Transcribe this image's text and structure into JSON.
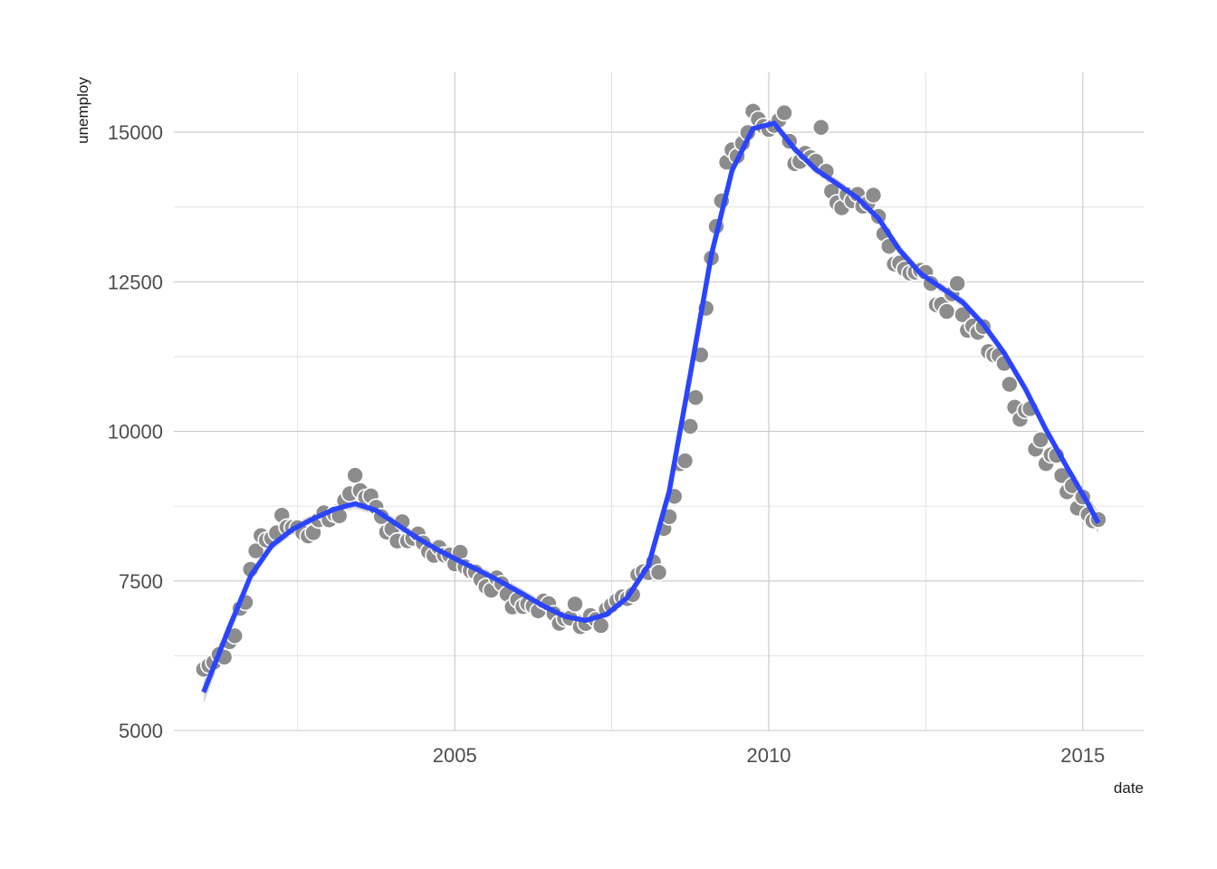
{
  "chart_data": {
    "type": "scatter",
    "xlabel": "date",
    "ylabel": "unemploy",
    "x_scale": "date",
    "xlim": [
      "2000-07-12",
      "2015-12-21"
    ],
    "ylim": [
      5000,
      16000
    ],
    "x_ticks": [
      {
        "value": "2005-01-01",
        "label": "2005"
      },
      {
        "value": "2010-01-01",
        "label": "2010"
      },
      {
        "value": "2015-01-01",
        "label": "2015"
      }
    ],
    "x_minor_ticks": [
      "2002-07-02",
      "2007-07-02",
      "2012-07-02"
    ],
    "y_ticks": [
      {
        "value": 5000,
        "label": "5000"
      },
      {
        "value": 7500,
        "label": "7500"
      },
      {
        "value": 10000,
        "label": "10000"
      },
      {
        "value": 12500,
        "label": "12500"
      },
      {
        "value": 15000,
        "label": "15000"
      }
    ],
    "y_minor_ticks": [
      6250,
      8750,
      11250,
      13750
    ],
    "grid": true,
    "series": [
      {
        "kind": "points",
        "color": "#8c8c8c",
        "x": [
          "2001-01-01",
          "2001-02-01",
          "2001-03-01",
          "2001-04-01",
          "2001-05-01",
          "2001-06-01",
          "2001-07-01",
          "2001-08-01",
          "2001-09-01",
          "2001-10-01",
          "2001-11-01",
          "2001-12-01",
          "2002-01-01",
          "2002-02-01",
          "2002-03-01",
          "2002-04-01",
          "2002-05-01",
          "2002-06-01",
          "2002-07-01",
          "2002-08-01",
          "2002-09-01",
          "2002-10-01",
          "2002-11-01",
          "2002-12-01",
          "2003-01-01",
          "2003-02-01",
          "2003-03-01",
          "2003-04-01",
          "2003-05-01",
          "2003-06-01",
          "2003-07-01",
          "2003-08-01",
          "2003-09-01",
          "2003-10-01",
          "2003-11-01",
          "2003-12-01",
          "2004-01-01",
          "2004-02-01",
          "2004-03-01",
          "2004-04-01",
          "2004-05-01",
          "2004-06-01",
          "2004-07-01",
          "2004-08-01",
          "2004-09-01",
          "2004-10-01",
          "2004-11-01",
          "2004-12-01",
          "2005-01-01",
          "2005-02-01",
          "2005-03-01",
          "2005-04-01",
          "2005-05-01",
          "2005-06-01",
          "2005-07-01",
          "2005-08-01",
          "2005-09-01",
          "2005-10-01",
          "2005-11-01",
          "2005-12-01",
          "2006-01-01",
          "2006-02-01",
          "2006-03-01",
          "2006-04-01",
          "2006-05-01",
          "2006-06-01",
          "2006-07-01",
          "2006-08-01",
          "2006-09-01",
          "2006-10-01",
          "2006-11-01",
          "2006-12-01",
          "2007-01-01",
          "2007-02-01",
          "2007-03-01",
          "2007-04-01",
          "2007-05-01",
          "2007-06-01",
          "2007-07-01",
          "2007-08-01",
          "2007-09-01",
          "2007-10-01",
          "2007-11-01",
          "2007-12-01",
          "2008-01-01",
          "2008-02-01",
          "2008-03-01",
          "2008-04-01",
          "2008-05-01",
          "2008-06-01",
          "2008-07-01",
          "2008-08-01",
          "2008-09-01",
          "2008-10-01",
          "2008-11-01",
          "2008-12-01",
          "2009-01-01",
          "2009-02-01",
          "2009-03-01",
          "2009-04-01",
          "2009-05-01",
          "2009-06-01",
          "2009-07-01",
          "2009-08-01",
          "2009-09-01",
          "2009-10-01",
          "2009-11-01",
          "2009-12-01",
          "2010-01-01",
          "2010-02-01",
          "2010-03-01",
          "2010-04-01",
          "2010-05-01",
          "2010-06-01",
          "2010-07-01",
          "2010-08-01",
          "2010-09-01",
          "2010-10-01",
          "2010-11-01",
          "2010-12-01",
          "2011-01-01",
          "2011-02-01",
          "2011-03-01",
          "2011-04-01",
          "2011-05-01",
          "2011-06-01",
          "2011-07-01",
          "2011-08-01",
          "2011-09-01",
          "2011-10-01",
          "2011-11-01",
          "2011-12-01",
          "2012-01-01",
          "2012-02-01",
          "2012-03-01",
          "2012-04-01",
          "2012-05-01",
          "2012-06-01",
          "2012-07-01",
          "2012-08-01",
          "2012-09-01",
          "2012-10-01",
          "2012-11-01",
          "2012-12-01",
          "2013-01-01",
          "2013-02-01",
          "2013-03-01",
          "2013-04-01",
          "2013-05-01",
          "2013-06-01",
          "2013-07-01",
          "2013-08-01",
          "2013-09-01",
          "2013-10-01",
          "2013-11-01",
          "2013-12-01",
          "2014-01-01",
          "2014-02-01",
          "2014-03-01",
          "2014-04-01",
          "2014-05-01",
          "2014-06-01",
          "2014-07-01",
          "2014-08-01",
          "2014-09-01",
          "2014-10-01",
          "2014-11-01",
          "2014-12-01",
          "2015-01-01",
          "2015-02-01",
          "2015-03-01",
          "2015-04-01"
        ],
        "y": [
          6023,
          6089,
          6141,
          6271,
          6226,
          6484,
          6583,
          7042,
          7142,
          7694,
          8003,
          8258,
          8182,
          8215,
          8304,
          8599,
          8399,
          8393,
          8390,
          8304,
          8251,
          8307,
          8520,
          8640,
          8520,
          8618,
          8588,
          8842,
          8957,
          9266,
          9011,
          8896,
          8921,
          8732,
          8576,
          8317,
          8370,
          8167,
          8491,
          8170,
          8212,
          8286,
          8136,
          7990,
          7927,
          8061,
          7932,
          7934,
          7784,
          7980,
          7737,
          7672,
          7651,
          7524,
          7406,
          7345,
          7553,
          7453,
          7279,
          7064,
          7184,
          7072,
          7120,
          7080,
          6999,
          7164,
          7120,
          6952,
          6791,
          6870,
          6879,
          7113,
          6735,
          6788,
          6922,
          6855,
          6754,
          7025,
          7095,
          7170,
          7232,
          7204,
          7272,
          7604,
          7654,
          7637,
          7818,
          7643,
          8376,
          8574,
          8913,
          9459,
          9508,
          10084,
          10566,
          11279,
          12058,
          12898,
          13426,
          13853,
          14499,
          14707,
          14601,
          14814,
          14995,
          15352,
          15219,
          15098,
          15046,
          15113,
          15202,
          15325,
          14849,
          14474,
          14512,
          14648,
          14579,
          14516,
          15081,
          14348,
          14013,
          13820,
          13737,
          13957,
          13855,
          13962,
          13763,
          13818,
          13948,
          13594,
          13302,
          13093,
          12797,
          12813,
          12713,
          12646,
          12660,
          12692,
          12656,
          12471,
          12115,
          12124,
          12005,
          12298,
          12471,
          11950,
          11689,
          11760,
          11654,
          11751,
          11335,
          11279,
          11270,
          11136,
          10787,
          10404,
          10202,
          10349,
          10380,
          9702,
          9859,
          9460,
          9608,
          9599,
          9262,
          8990,
          9090,
          8717,
          8903,
          8610,
          8504,
          8526
        ]
      },
      {
        "kind": "smooth",
        "color": "#2a44ff",
        "x": [
          "2001-01-01",
          "2001-06-01",
          "2001-10-01",
          "2002-02-01",
          "2002-06-01",
          "2002-10-01",
          "2003-02-01",
          "2003-06-01",
          "2003-10-01",
          "2004-02-01",
          "2004-06-01",
          "2004-10-01",
          "2005-02-01",
          "2005-06-01",
          "2005-10-01",
          "2006-02-01",
          "2006-06-01",
          "2006-10-01",
          "2007-02-01",
          "2007-06-01",
          "2007-10-01",
          "2008-02-01",
          "2008-06-01",
          "2008-10-01",
          "2009-02-01",
          "2009-06-01",
          "2009-10-01",
          "2010-02-01",
          "2010-06-01",
          "2010-10-01",
          "2011-02-01",
          "2011-06-01",
          "2011-10-01",
          "2012-02-01",
          "2012-06-01",
          "2012-10-01",
          "2013-02-01",
          "2013-06-01",
          "2013-10-01",
          "2014-02-01",
          "2014-06-01",
          "2014-10-01",
          "2015-02-01",
          "2015-04-01"
        ],
        "y": [
          5640,
          6730,
          7580,
          8090,
          8360,
          8540,
          8700,
          8790,
          8680,
          8440,
          8210,
          8010,
          7830,
          7660,
          7480,
          7280,
          7080,
          6910,
          6840,
          6940,
          7220,
          7760,
          9000,
          10950,
          12950,
          14360,
          15060,
          15150,
          14720,
          14380,
          14140,
          13900,
          13560,
          13030,
          12640,
          12400,
          12160,
          11790,
          11310,
          10710,
          10030,
          9400,
          8790,
          8470
        ]
      }
    ]
  }
}
